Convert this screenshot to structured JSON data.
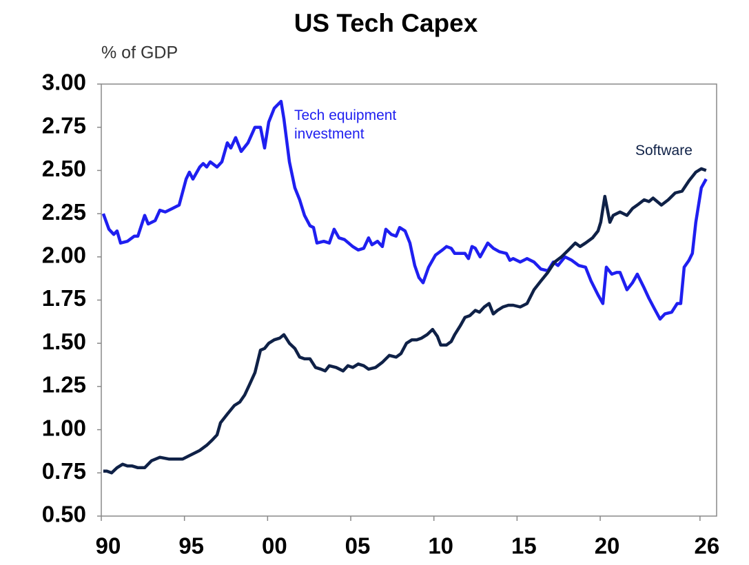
{
  "chart_data": {
    "type": "line",
    "title": "US Tech Capex",
    "y_axis_label": "% of GDP",
    "xlim": [
      1990,
      2027
    ],
    "ylim": [
      0.5,
      3.0
    ],
    "xticks": [
      {
        "value": 1990,
        "label": "90"
      },
      {
        "value": 1995,
        "label": "95"
      },
      {
        "value": 2000,
        "label": "00"
      },
      {
        "value": 2005,
        "label": "05"
      },
      {
        "value": 2010,
        "label": "10"
      },
      {
        "value": 2015,
        "label": "15"
      },
      {
        "value": 2020,
        "label": "20"
      },
      {
        "value": 2026,
        "label": "26"
      }
    ],
    "yticks": [
      {
        "value": 0.5,
        "label": "0.50"
      },
      0.75,
      {
        "value": 1.0,
        "label": "1.00"
      },
      1.25,
      {
        "value": 1.5,
        "label": "1.50"
      },
      1.75,
      {
        "value": 2.0,
        "label": "2.00"
      },
      2.25,
      {
        "value": 2.5,
        "label": "2.50"
      },
      2.75,
      {
        "value": 3.0,
        "label": "3.00"
      }
    ],
    "annotations": [
      {
        "text": "Tech equipment investment",
        "color": "#1f1ff0",
        "series": 0
      },
      {
        "text": "Software",
        "color": "#0f2147",
        "series": 1
      }
    ],
    "series": [
      {
        "name": "Tech equipment investment",
        "color": "#1f1ff0",
        "x": [
          1990.12,
          1990.46,
          1990.75,
          1990.95,
          1991.16,
          1991.57,
          1991.99,
          1992.2,
          1992.61,
          1992.82,
          1993.24,
          1993.52,
          1993.85,
          1994.27,
          1994.68,
          1995.1,
          1995.3,
          1995.51,
          1995.92,
          1996.13,
          1996.34,
          1996.55,
          1996.96,
          1997.25,
          1997.58,
          1997.79,
          1998.08,
          1998.41,
          1998.82,
          1999.24,
          1999.57,
          1999.82,
          2000.07,
          2000.4,
          2000.81,
          2000.98,
          2001.31,
          2001.64,
          2001.93,
          2002.22,
          2002.55,
          2002.76,
          2002.97,
          2003.38,
          2003.71,
          2004.0,
          2004.29,
          2004.62,
          2005.12,
          2005.45,
          2005.78,
          2006.07,
          2006.28,
          2006.61,
          2006.9,
          2007.11,
          2007.44,
          2007.73,
          2007.94,
          2008.27,
          2008.56,
          2008.85,
          2009.1,
          2009.35,
          2009.68,
          2010.09,
          2010.51,
          2010.76,
          2011.04,
          2011.25,
          2011.58,
          2011.87,
          2012.08,
          2012.29,
          2012.49,
          2012.78,
          2013.24,
          2013.57,
          2013.94,
          2014.36,
          2014.57,
          2014.77,
          2015.19,
          2015.6,
          2016.02,
          2016.43,
          2016.85,
          2017.18,
          2017.46,
          2017.88,
          2018.29,
          2018.71,
          2019.12,
          2019.45,
          2019.87,
          2020.16,
          2020.37,
          2020.7,
          2020.99,
          2021.19,
          2021.61,
          2021.94,
          2022.23,
          2022.64,
          2022.93,
          2023.26,
          2023.6,
          2023.89,
          2024.3,
          2024.63,
          2024.84,
          2025.05,
          2025.34,
          2025.54,
          2025.75,
          2026.08,
          2026.37
        ],
        "values": [
          2.25,
          2.16,
          2.13,
          2.15,
          2.08,
          2.09,
          2.12,
          2.12,
          2.24,
          2.19,
          2.21,
          2.27,
          2.26,
          2.28,
          2.3,
          2.45,
          2.49,
          2.45,
          2.52,
          2.54,
          2.52,
          2.55,
          2.52,
          2.55,
          2.66,
          2.63,
          2.69,
          2.61,
          2.66,
          2.75,
          2.75,
          2.63,
          2.78,
          2.86,
          2.9,
          2.8,
          2.55,
          2.4,
          2.33,
          2.24,
          2.18,
          2.17,
          2.08,
          2.09,
          2.08,
          2.16,
          2.11,
          2.1,
          2.06,
          2.04,
          2.05,
          2.11,
          2.07,
          2.09,
          2.06,
          2.16,
          2.13,
          2.12,
          2.17,
          2.15,
          2.08,
          1.95,
          1.88,
          1.85,
          1.94,
          2.01,
          2.04,
          2.06,
          2.05,
          2.02,
          2.02,
          2.02,
          1.99,
          2.06,
          2.05,
          2.0,
          2.08,
          2.05,
          2.03,
          2.02,
          1.98,
          1.99,
          1.97,
          1.99,
          1.97,
          1.93,
          1.92,
          1.97,
          1.95,
          2.0,
          1.98,
          1.95,
          1.94,
          1.86,
          1.78,
          1.73,
          1.94,
          1.9,
          1.91,
          1.91,
          1.81,
          1.85,
          1.9,
          1.82,
          1.76,
          1.7,
          1.64,
          1.67,
          1.68,
          1.73,
          1.73,
          1.94,
          1.98,
          2.02,
          2.2,
          2.4,
          2.45
        ]
      },
      {
        "name": "Software",
        "color": "#0f2147",
        "x": [
          1990.12,
          1990.33,
          1990.62,
          1990.95,
          1991.28,
          1991.57,
          1991.86,
          1992.2,
          1992.61,
          1993.02,
          1993.52,
          1994.06,
          1994.6,
          1994.89,
          1995.3,
          1995.92,
          1996.34,
          1996.67,
          1996.96,
          1997.17,
          1997.58,
          1998.0,
          1998.33,
          1998.62,
          1998.91,
          1999.24,
          1999.57,
          1999.82,
          2000.07,
          2000.4,
          2000.73,
          2000.98,
          2001.31,
          2001.64,
          2001.93,
          2002.22,
          2002.55,
          2002.88,
          2003.21,
          2003.46,
          2003.71,
          2004.12,
          2004.54,
          2004.83,
          2005.12,
          2005.45,
          2005.78,
          2006.07,
          2006.49,
          2006.9,
          2007.32,
          2007.73,
          2008.02,
          2008.35,
          2008.68,
          2008.97,
          2009.26,
          2009.59,
          2009.92,
          2010.21,
          2010.41,
          2010.76,
          2011.04,
          2011.25,
          2011.58,
          2011.87,
          2012.16,
          2012.49,
          2012.74,
          2013.03,
          2013.32,
          2013.57,
          2013.82,
          2014.15,
          2014.48,
          2014.77,
          2015.19,
          2015.6,
          2016.02,
          2016.43,
          2016.85,
          2017.26,
          2017.67,
          2018.09,
          2018.5,
          2018.79,
          2019.12,
          2019.54,
          2019.87,
          2020.03,
          2020.28,
          2020.58,
          2020.78,
          2021.19,
          2021.61,
          2021.94,
          2022.23,
          2022.64,
          2022.93,
          2023.18,
          2023.68,
          2024.09,
          2024.51,
          2024.92,
          2025.34,
          2025.75,
          2026.08,
          2026.37
        ],
        "values": [
          0.76,
          0.76,
          0.75,
          0.78,
          0.8,
          0.79,
          0.79,
          0.78,
          0.78,
          0.82,
          0.84,
          0.83,
          0.83,
          0.83,
          0.85,
          0.88,
          0.91,
          0.94,
          0.97,
          1.04,
          1.09,
          1.14,
          1.16,
          1.2,
          1.26,
          1.33,
          1.46,
          1.47,
          1.5,
          1.52,
          1.53,
          1.55,
          1.5,
          1.47,
          1.42,
          1.41,
          1.41,
          1.36,
          1.35,
          1.34,
          1.37,
          1.36,
          1.34,
          1.37,
          1.36,
          1.38,
          1.37,
          1.35,
          1.36,
          1.39,
          1.43,
          1.42,
          1.44,
          1.5,
          1.52,
          1.52,
          1.53,
          1.55,
          1.58,
          1.54,
          1.49,
          1.49,
          1.51,
          1.55,
          1.6,
          1.65,
          1.66,
          1.69,
          1.68,
          1.71,
          1.73,
          1.67,
          1.69,
          1.71,
          1.72,
          1.72,
          1.71,
          1.73,
          1.81,
          1.86,
          1.91,
          1.97,
          2.0,
          2.04,
          2.08,
          2.06,
          2.08,
          2.11,
          2.15,
          2.2,
          2.35,
          2.2,
          2.24,
          2.26,
          2.24,
          2.28,
          2.3,
          2.33,
          2.32,
          2.34,
          2.3,
          2.33,
          2.37,
          2.38,
          2.44,
          2.49,
          2.51,
          2.5
        ]
      }
    ]
  }
}
